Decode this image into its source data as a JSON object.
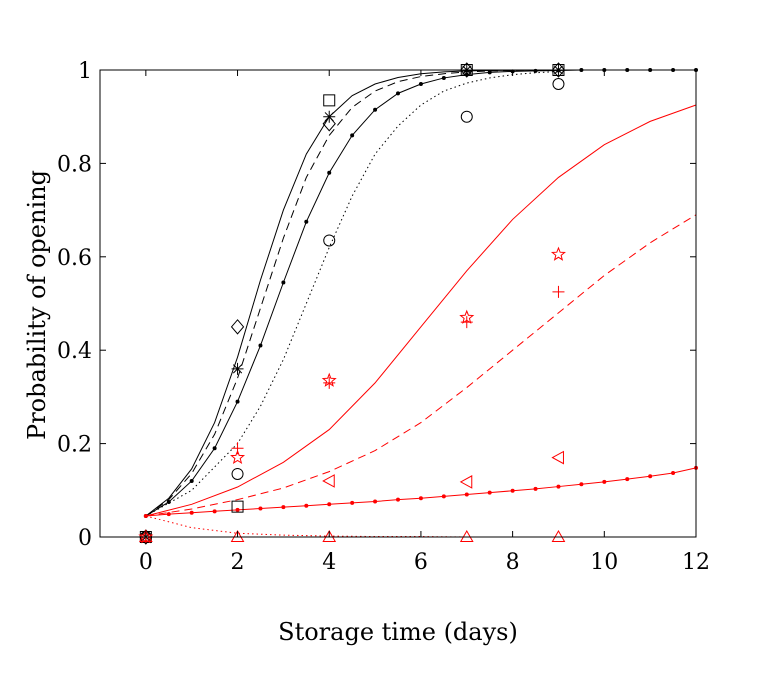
{
  "chart_data": {
    "type": "line",
    "title": "",
    "xlabel": "Storage time (days)",
    "ylabel": "Probability of opening",
    "xlim": [
      -1,
      12
    ],
    "ylim": [
      0,
      1
    ],
    "x_ticks": [
      0,
      2,
      4,
      6,
      8,
      10,
      12
    ],
    "y_ticks": [
      0,
      0.2,
      0.4,
      0.6,
      0.8,
      1
    ],
    "x_tick_labels": [
      "0",
      "2",
      "4",
      "6",
      "8",
      "10",
      "12"
    ],
    "y_tick_labels": [
      "0",
      "0.2",
      "0.4",
      "0.6",
      "0.8",
      "1"
    ],
    "grid": false,
    "box": true,
    "colors": {
      "black": "#000000",
      "red": "#ff0000"
    },
    "curves": [
      {
        "color": "black",
        "style": "solid",
        "x": [
          0,
          0.5,
          1,
          1.5,
          2,
          2.5,
          3,
          3.5,
          4,
          4.5,
          5,
          5.5,
          6,
          6.5,
          7,
          7.5,
          8,
          8.5,
          9
        ],
        "y": [
          0.045,
          0.083,
          0.146,
          0.245,
          0.385,
          0.55,
          0.7,
          0.82,
          0.9,
          0.945,
          0.97,
          0.984,
          0.992,
          0.996,
          0.998,
          0.999,
          0.9995,
          1,
          1
        ]
      },
      {
        "color": "black",
        "style": "dashed",
        "x": [
          0,
          0.5,
          1,
          1.5,
          2,
          2.5,
          3,
          3.5,
          4,
          4.5,
          5,
          5.5,
          6,
          6.5,
          7,
          7.5,
          8,
          8.5,
          9
        ],
        "y": [
          0.045,
          0.08,
          0.136,
          0.22,
          0.34,
          0.49,
          0.64,
          0.77,
          0.86,
          0.92,
          0.955,
          0.975,
          0.986,
          0.992,
          0.996,
          0.998,
          0.999,
          1,
          1
        ]
      },
      {
        "color": "black",
        "style": "solid-dots",
        "x": [
          0,
          0.5,
          1,
          1.5,
          2,
          2.5,
          3,
          3.5,
          4,
          4.5,
          5,
          5.5,
          6,
          6.5,
          7,
          7.5,
          8,
          8.5,
          9,
          9.5,
          10,
          10.5,
          11,
          11.5,
          12
        ],
        "y": [
          0.045,
          0.075,
          0.12,
          0.19,
          0.29,
          0.41,
          0.545,
          0.675,
          0.78,
          0.86,
          0.915,
          0.95,
          0.97,
          0.983,
          0.99,
          0.995,
          0.997,
          0.998,
          0.999,
          1,
          1,
          1,
          1,
          1,
          1
        ]
      },
      {
        "color": "black",
        "style": "dotted",
        "x": [
          0,
          1,
          2,
          2.5,
          3,
          3.5,
          4,
          4.5,
          5,
          5.5,
          6,
          6.5,
          7,
          7.5,
          8,
          8.5,
          9
        ],
        "y": [
          0.045,
          0.1,
          0.2,
          0.28,
          0.38,
          0.5,
          0.62,
          0.73,
          0.82,
          0.88,
          0.925,
          0.955,
          0.972,
          0.983,
          0.99,
          0.994,
          0.997
        ]
      },
      {
        "color": "red",
        "style": "solid",
        "x": [
          0,
          1,
          2,
          3,
          4,
          5,
          6,
          7,
          8,
          9,
          10,
          11,
          12
        ],
        "y": [
          0.045,
          0.07,
          0.107,
          0.16,
          0.23,
          0.33,
          0.45,
          0.57,
          0.68,
          0.77,
          0.84,
          0.89,
          0.925
        ]
      },
      {
        "color": "red",
        "style": "dashed",
        "x": [
          0,
          1,
          2,
          3,
          4,
          5,
          6,
          7,
          8,
          9,
          10,
          11,
          12
        ],
        "y": [
          0.045,
          0.06,
          0.08,
          0.105,
          0.14,
          0.185,
          0.245,
          0.32,
          0.4,
          0.48,
          0.56,
          0.63,
          0.69
        ]
      },
      {
        "color": "red",
        "style": "solid-dots",
        "x": [
          0,
          0.5,
          1,
          1.5,
          2,
          2.5,
          3,
          3.5,
          4,
          4.5,
          5,
          5.5,
          6,
          6.5,
          7,
          7.5,
          8,
          8.5,
          9,
          9.5,
          10,
          10.5,
          11,
          11.5,
          12
        ],
        "y": [
          0.045,
          0.049,
          0.052,
          0.055,
          0.058,
          0.061,
          0.064,
          0.067,
          0.07,
          0.073,
          0.076,
          0.08,
          0.083,
          0.087,
          0.091,
          0.095,
          0.099,
          0.103,
          0.108,
          0.113,
          0.118,
          0.124,
          0.13,
          0.137,
          0.148
        ]
      },
      {
        "color": "red",
        "style": "dotted",
        "x": [
          0,
          1,
          2,
          3,
          4,
          5,
          6,
          7,
          8,
          9,
          10,
          11,
          12
        ],
        "y": [
          0.045,
          0.02,
          0.008,
          0.004,
          0.002,
          0.001,
          0.001,
          0,
          0,
          0,
          0,
          0,
          0
        ]
      }
    ],
    "observations": [
      {
        "marker": "square",
        "color": "black",
        "x": [
          0,
          2,
          4,
          7,
          9
        ],
        "y": [
          0,
          0.065,
          0.935,
          1,
          1
        ]
      },
      {
        "marker": "diamond",
        "color": "black",
        "x": [
          0,
          2,
          4,
          7,
          9
        ],
        "y": [
          0,
          0.45,
          0.885,
          1,
          1
        ]
      },
      {
        "marker": "asterisk",
        "color": "black",
        "x": [
          0,
          2,
          4,
          7,
          9
        ],
        "y": [
          0,
          0.36,
          0.9,
          1,
          1
        ]
      },
      {
        "marker": "circle",
        "color": "black",
        "x": [
          0,
          2,
          4,
          7,
          9
        ],
        "y": [
          0,
          0.135,
          0.635,
          0.9,
          0.97
        ]
      },
      {
        "marker": "plus",
        "color": "red",
        "x": [
          0,
          2,
          4,
          7,
          9
        ],
        "y": [
          0,
          0.19,
          0.33,
          0.46,
          0.525
        ]
      },
      {
        "marker": "star",
        "color": "red",
        "x": [
          0,
          2,
          4,
          7,
          9
        ],
        "y": [
          0,
          0.17,
          0.335,
          0.47,
          0.605
        ]
      },
      {
        "marker": "triangle-left",
        "color": "red",
        "x": [
          4,
          7,
          9
        ],
        "y": [
          0.12,
          0.118,
          0.17
        ]
      },
      {
        "marker": "triangle-up",
        "color": "red",
        "x": [
          0,
          2,
          4,
          7,
          9
        ],
        "y": [
          0,
          0,
          0,
          0,
          0
        ]
      }
    ]
  }
}
